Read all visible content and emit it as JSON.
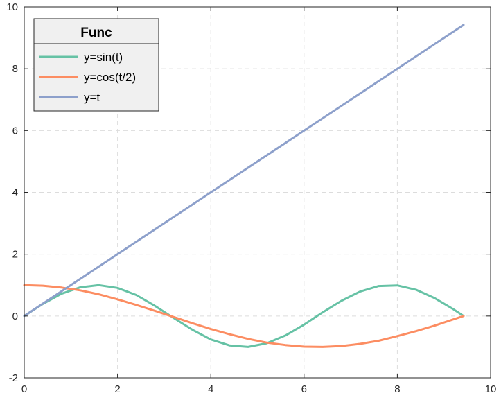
{
  "chart_data": {
    "type": "line",
    "title": "",
    "xlabel": "",
    "ylabel": "",
    "xlim": [
      0,
      10
    ],
    "ylim": [
      -2,
      10
    ],
    "xticks": [
      0,
      2,
      4,
      6,
      8,
      10
    ],
    "yticks": [
      -2,
      0,
      2,
      4,
      6,
      8,
      10
    ],
    "grid": true,
    "legend": {
      "title": "Func",
      "placement": "top-left"
    },
    "series": [
      {
        "name": "y=sin(t)",
        "color": "#66c2a5",
        "x": [
          0.0,
          0.4,
          0.8,
          1.2,
          1.6,
          2.0,
          2.4,
          2.8,
          3.2,
          3.6,
          4.0,
          4.4,
          4.8,
          5.2,
          5.6,
          6.0,
          6.4,
          6.8,
          7.2,
          7.6,
          8.0,
          8.4,
          8.8,
          9.2,
          9.42
        ],
        "y": [
          0.0,
          0.39,
          0.72,
          0.93,
          1.0,
          0.91,
          0.68,
          0.33,
          -0.06,
          -0.44,
          -0.76,
          -0.95,
          -1.0,
          -0.88,
          -0.63,
          -0.28,
          0.12,
          0.49,
          0.79,
          0.97,
          0.99,
          0.85,
          0.58,
          0.22,
          0.0
        ]
      },
      {
        "name": "y=cos(t/2)",
        "color": "#fc8d62",
        "x": [
          0.0,
          0.4,
          0.8,
          1.2,
          1.6,
          2.0,
          2.4,
          2.8,
          3.2,
          3.6,
          4.0,
          4.4,
          4.8,
          5.2,
          5.6,
          6.0,
          6.4,
          6.8,
          7.2,
          7.6,
          8.0,
          8.4,
          8.8,
          9.2,
          9.42
        ],
        "y": [
          1.0,
          0.98,
          0.92,
          0.83,
          0.7,
          0.54,
          0.36,
          0.17,
          -0.03,
          -0.23,
          -0.42,
          -0.59,
          -0.74,
          -0.86,
          -0.94,
          -0.99,
          -1.0,
          -0.97,
          -0.9,
          -0.8,
          -0.65,
          -0.49,
          -0.31,
          -0.11,
          0.0
        ]
      },
      {
        "name": "y=t",
        "color": "#8da0cb",
        "x": [
          0.0,
          9.42
        ],
        "y": [
          0.0,
          9.42
        ]
      }
    ]
  }
}
